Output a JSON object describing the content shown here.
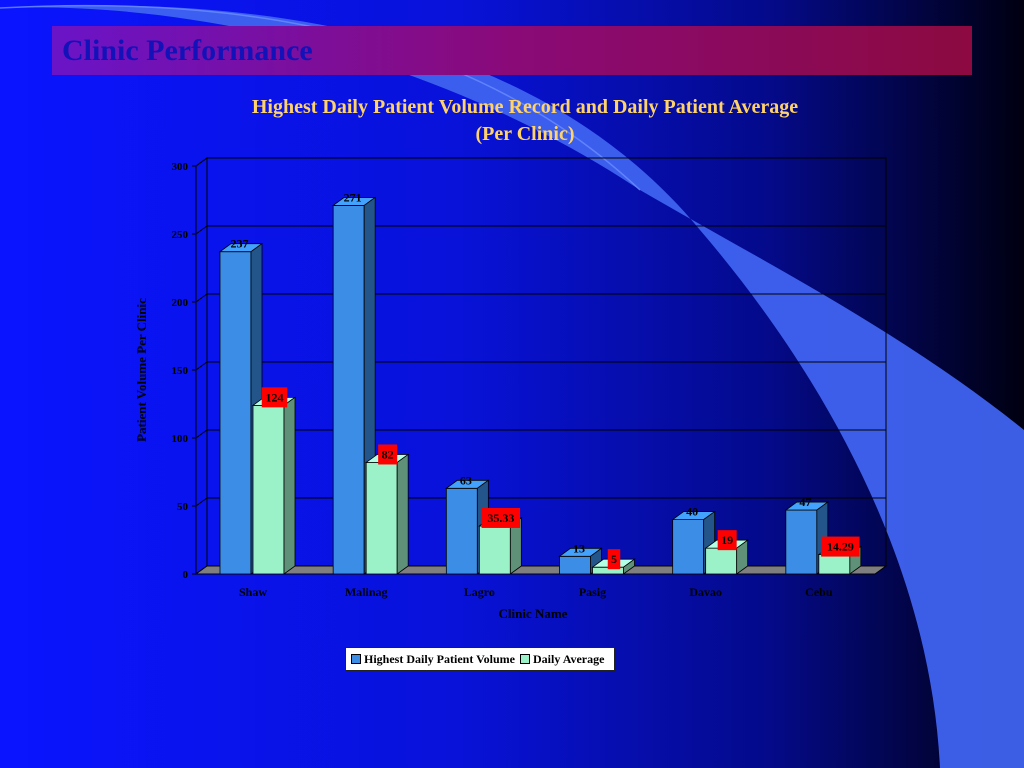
{
  "slide": {
    "title": "Clinic Performance"
  },
  "chart_data": {
    "type": "bar",
    "title_line1": "Highest Daily Patient Volume Record and Daily Patient Average",
    "title_line2": "(Per Clinic)",
    "xlabel": "Clinic Name",
    "ylabel": "Patient Volume Per Clinic",
    "ylim": [
      0,
      300
    ],
    "yticks": [
      0,
      50,
      100,
      150,
      200,
      250,
      300
    ],
    "categories": [
      "Shaw",
      "Malinag",
      "Lagro",
      "Pasig",
      "Davao",
      "Cebu"
    ],
    "series": [
      {
        "name": "Highest Daily Patient Volume",
        "values": [
          237,
          271,
          63,
          13,
          40,
          47
        ],
        "labels": [
          "237",
          "271",
          "63",
          "13",
          "40",
          "47"
        ],
        "color": "#3b8de6"
      },
      {
        "name": "Daily Average",
        "values": [
          124,
          82,
          35.33,
          5,
          19,
          14.29
        ],
        "labels": [
          "124",
          "82",
          "35.33",
          "5",
          "19",
          "14.29"
        ],
        "color": "#9cf2c8"
      }
    ],
    "grid": true,
    "legend_position": "bottom"
  },
  "colors": {
    "label_box": "#ff0000",
    "title_text": "#ffd36a",
    "slide_title_text": "#1212b8"
  }
}
